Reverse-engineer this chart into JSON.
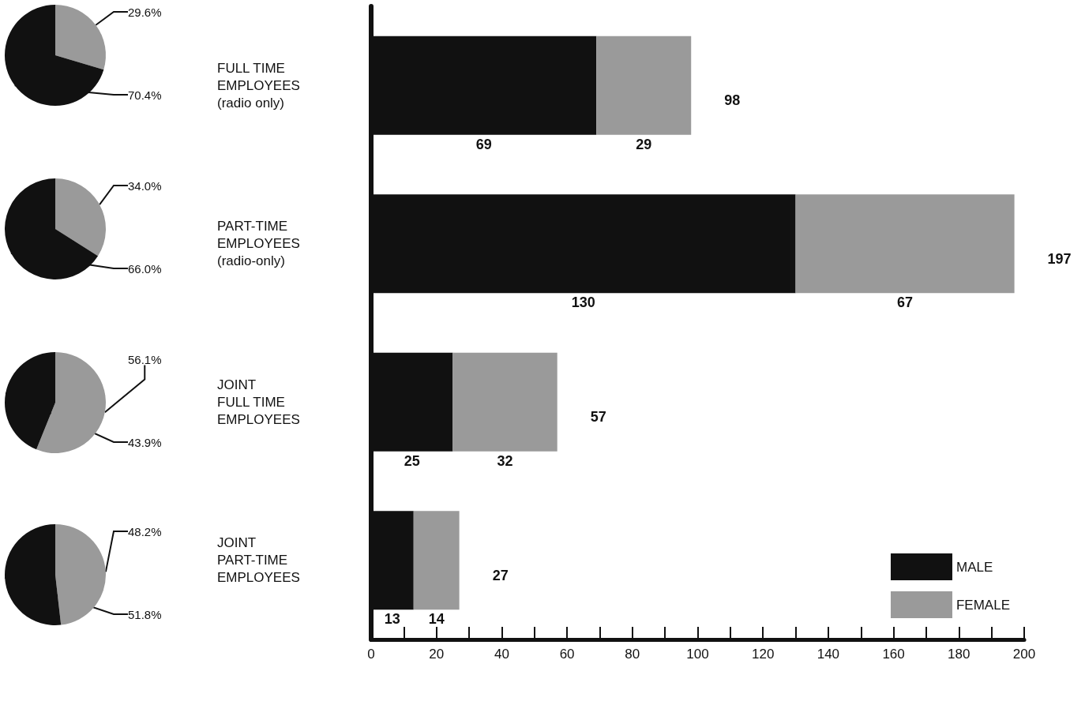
{
  "chart_data": [
    {
      "type": "pie",
      "categories": [
        null,
        null
      ],
      "values": [
        29.6,
        70.4
      ],
      "colors": [
        "#9a9a9a",
        "#111111"
      ],
      "value_labels": [
        "29.6%",
        "70.4%"
      ]
    },
    {
      "type": "pie",
      "categories": [
        null,
        null
      ],
      "values": [
        34.0,
        66.0
      ],
      "colors": [
        "#9a9a9a",
        "#111111"
      ],
      "value_labels": [
        "34.0%",
        "66.0%"
      ]
    },
    {
      "type": "pie",
      "categories": [
        null,
        null
      ],
      "values": [
        56.1,
        43.9
      ],
      "colors": [
        "#9a9a9a",
        "#111111"
      ],
      "value_labels": [
        "56.1%",
        "43.9%"
      ]
    },
    {
      "type": "pie",
      "categories": [
        null,
        null
      ],
      "values": [
        48.2,
        51.8
      ],
      "colors": [
        "#9a9a9a",
        "#111111"
      ],
      "value_labels": [
        "48.2%",
        "51.8%"
      ]
    },
    {
      "type": "bar",
      "orientation": "horizontal",
      "stacked": true,
      "categories": [
        "FULL TIME\nEMPLOYEES\n(radio only)",
        "PART-TIME\nEMPLOYEES\n(radio-only)",
        "JOINT\nFULL TIME\nEMPLOYEES",
        "JOINT\nPART-TIME\nEMPLOYEES"
      ],
      "series": [
        {
          "name": "MALE",
          "color": "#111111",
          "values": [
            69,
            130,
            25,
            13
          ]
        },
        {
          "name": "FEMALE",
          "color": "#9a9a9a",
          "values": [
            29,
            67,
            32,
            14
          ]
        }
      ],
      "totals": [
        "98",
        "197",
        "57",
        "27"
      ],
      "data_labels": true,
      "legend": "bottom right",
      "xlim": [
        0,
        200
      ],
      "xticks": [
        0,
        {
          "value": 10,
          "label": null
        },
        20,
        {
          "value": 30,
          "label": null
        },
        40,
        {
          "value": 50,
          "label": null
        },
        60,
        {
          "value": 70,
          "label": null
        },
        80,
        {
          "value": 90,
          "label": null
        },
        100,
        {
          "value": 110,
          "label": null
        },
        120,
        {
          "value": 130,
          "label": null
        },
        140,
        {
          "value": 150,
          "label": null
        },
        160,
        {
          "value": 170,
          "label": null
        },
        180,
        {
          "value": 190,
          "label": null
        },
        200
      ]
    }
  ]
}
